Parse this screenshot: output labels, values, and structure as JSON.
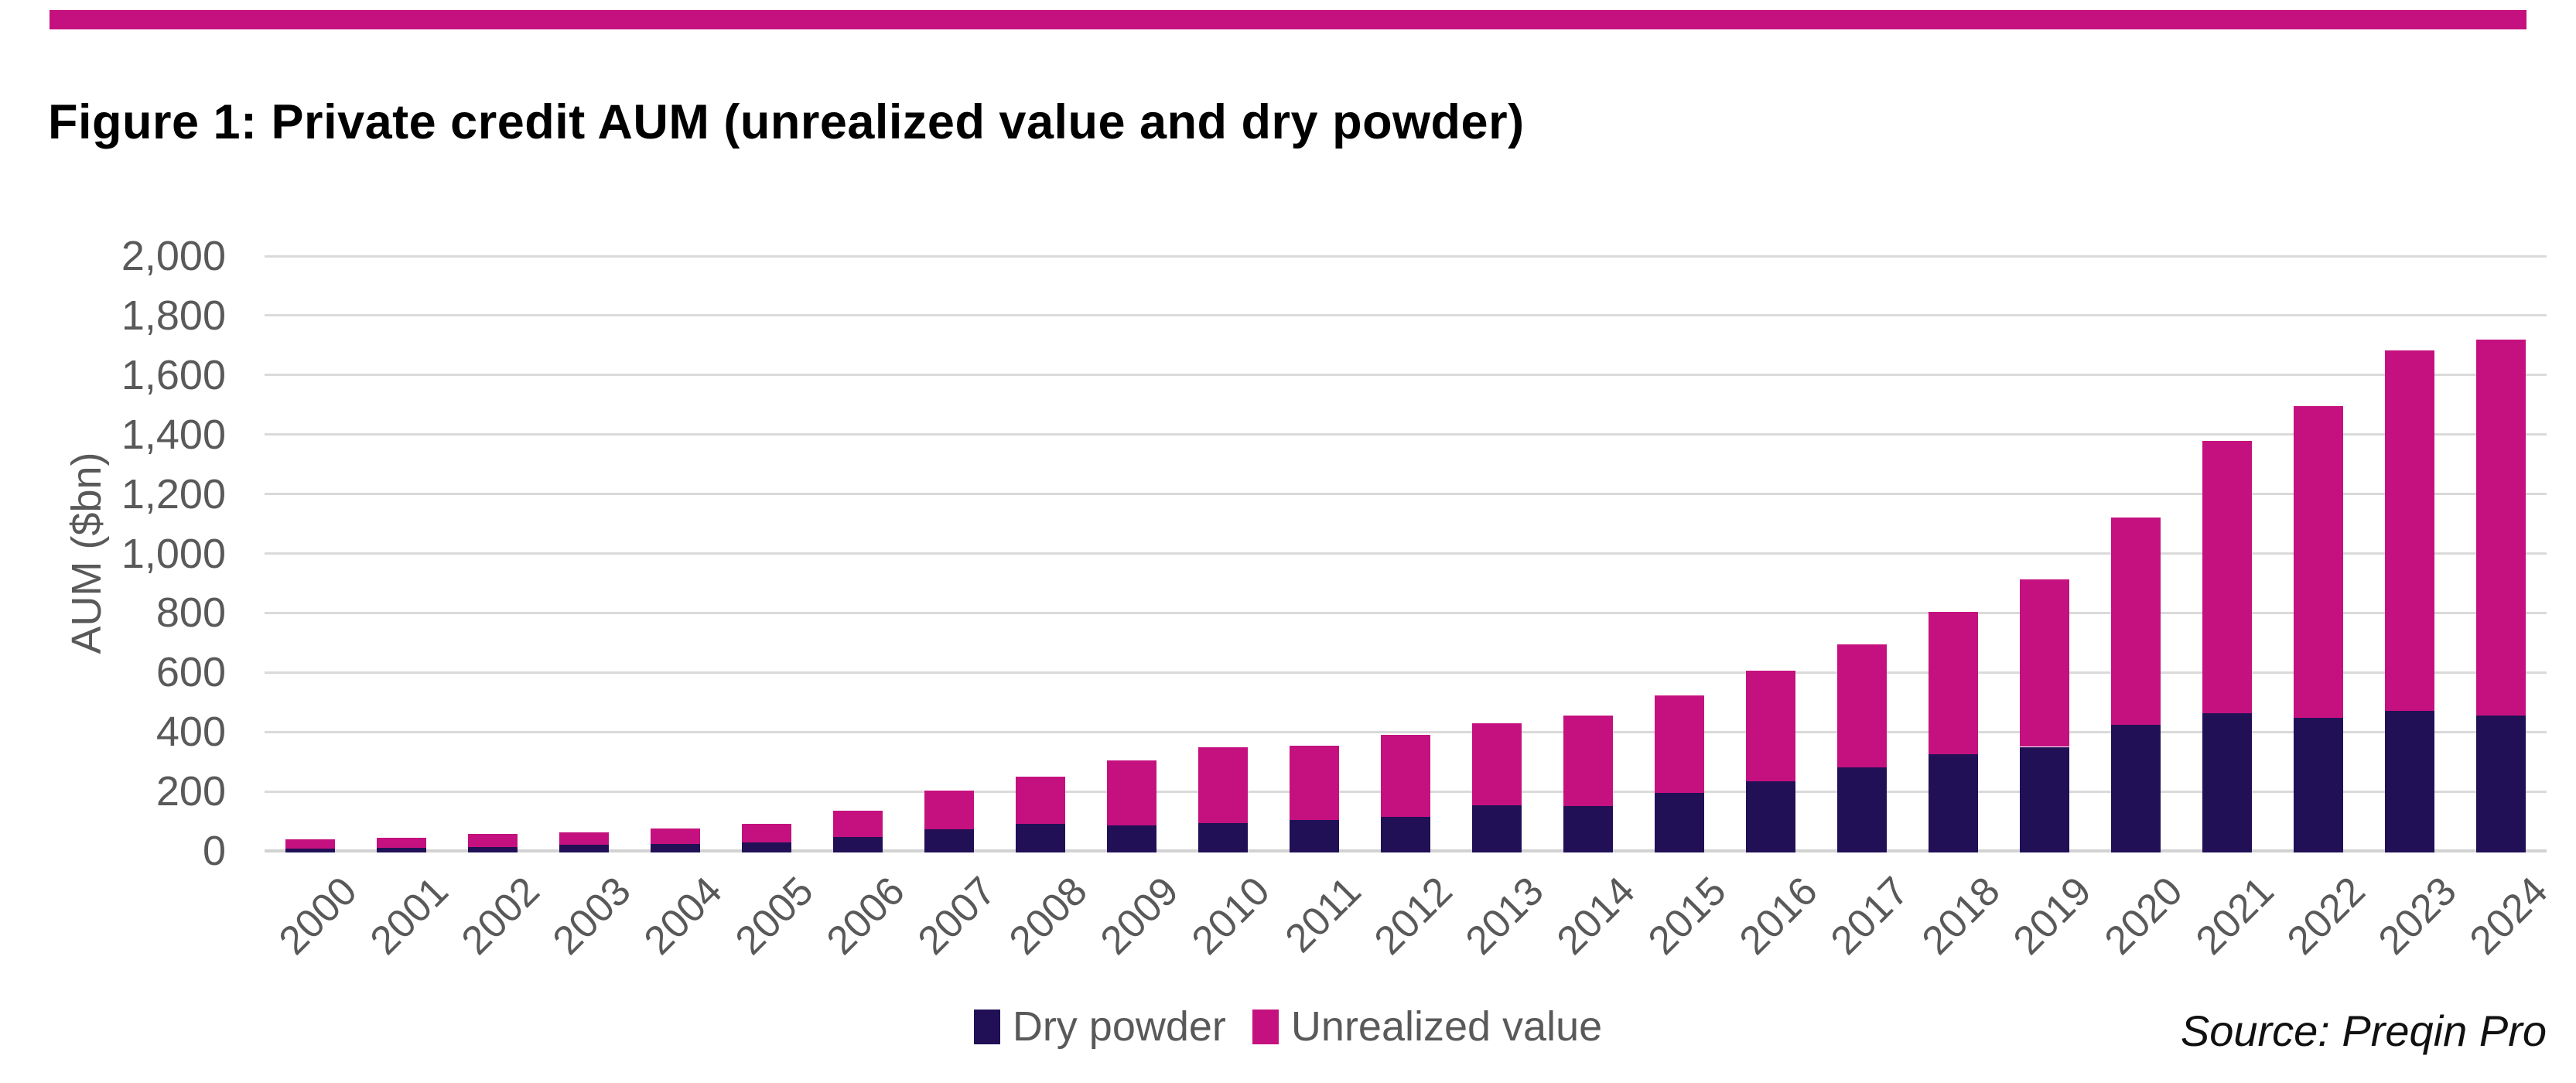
{
  "title": "Figure 1: Private credit AUM (unrealized value and dry powder)",
  "source_note": "Source: Preqin Pro",
  "colors": {
    "dry_powder": "#211056",
    "unrealized_value": "#c5117f",
    "accent_bar": "#c5117f",
    "gridline": "#dadada",
    "axis_text": "#595959"
  },
  "legend": {
    "items": [
      {
        "label": "Dry powder",
        "color": "#211056"
      },
      {
        "label": "Unrealized value",
        "color": "#c5117f"
      }
    ]
  },
  "chart_data": {
    "type": "bar",
    "stacked": true,
    "title": "Figure 1: Private credit AUM (unrealized value and dry powder)",
    "ylabel": "AUM ($bn)",
    "xlabel": "",
    "ylim": [
      0,
      2000
    ],
    "ytick_step": 200,
    "ytick_labels": [
      "0",
      "200",
      "400",
      "600",
      "800",
      "1,000",
      "1,200",
      "1,400",
      "1,600",
      "1,800",
      "2,000"
    ],
    "grid": true,
    "legend_position": "bottom-center",
    "categories": [
      "2000",
      "2001",
      "2002",
      "2003",
      "2004",
      "2005",
      "2006",
      "2007",
      "2008",
      "2009",
      "2010",
      "2011",
      "2012",
      "2013",
      "2014",
      "2015",
      "2016",
      "2017",
      "2018",
      "2019",
      "2020",
      "2021",
      "2022",
      "2023",
      "2024"
    ],
    "series": [
      {
        "name": "Dry powder",
        "color": "#211056",
        "values": [
          13,
          15,
          19,
          25,
          29,
          33,
          52,
          78,
          95,
          90,
          100,
          110,
          120,
          158,
          155,
          200,
          240,
          285,
          330,
          355,
          430,
          468,
          453,
          477,
          461
        ]
      },
      {
        "name": "Unrealized value",
        "color": "#c5117f",
        "values": [
          31,
          35,
          43,
          43,
          51,
          63,
          88,
          129,
          160,
          220,
          255,
          250,
          275,
          277,
          305,
          327,
          372,
          415,
          478,
          562,
          695,
          915,
          1047,
          1211,
          1264
        ]
      }
    ],
    "totals": [
      44,
      50,
      62,
      68,
      80,
      96,
      140,
      207,
      255,
      310,
      355,
      360,
      395,
      435,
      460,
      527,
      612,
      700,
      808,
      917,
      1125,
      1383,
      1500,
      1688,
      1725
    ]
  }
}
